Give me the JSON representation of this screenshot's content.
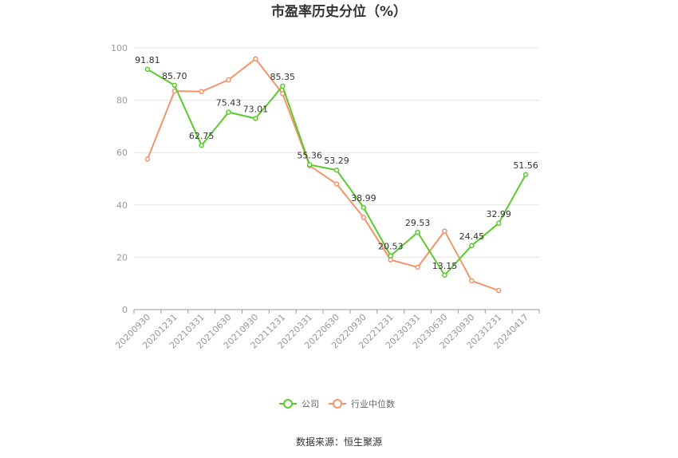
{
  "chart_data": {
    "type": "line",
    "title": "市盈率历史分位（%）",
    "categories": [
      "20200930",
      "20201231",
      "20210331",
      "20210630",
      "20210930",
      "20211231",
      "20220331",
      "20220630",
      "20220930",
      "20221231",
      "20230331",
      "20230630",
      "20230930",
      "20231231",
      "20240417"
    ],
    "series": [
      {
        "name": "公司",
        "color": "#5cc92e",
        "values": [
          91.81,
          85.7,
          62.75,
          75.43,
          73.01,
          85.35,
          55.36,
          53.29,
          38.99,
          20.53,
          29.53,
          13.15,
          24.45,
          32.99,
          51.56
        ],
        "labels": [
          "91.81",
          "85.70",
          "62.75",
          "75.43",
          "73.01",
          "85.35",
          "55.36",
          "53.29",
          "38.99",
          "20.53",
          "29.53",
          "13.15",
          "24.45",
          "32.99",
          "51.56"
        ]
      },
      {
        "name": "行业中位数",
        "color": "#f4946a",
        "values": [
          57.5,
          83.5,
          83.3,
          87.8,
          95.8,
          82.5,
          55.0,
          48.0,
          35.2,
          19.0,
          16.2,
          30.0,
          11.0,
          7.3,
          null
        ]
      }
    ],
    "ylim": [
      0,
      100
    ],
    "yticks": [
      0,
      20,
      40,
      60,
      80,
      100
    ],
    "grid": true,
    "legend": "bottom-center"
  },
  "source": "数据来源：恒生聚源"
}
